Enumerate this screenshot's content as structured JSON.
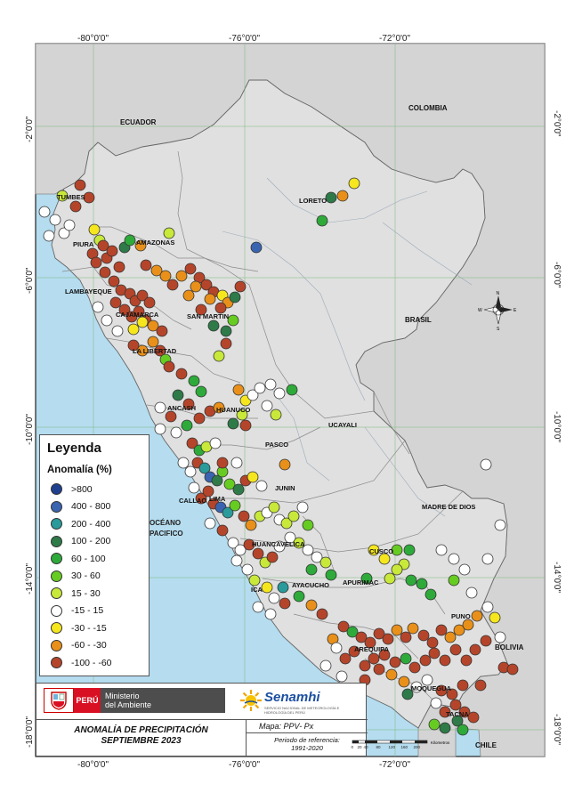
{
  "map": {
    "coords_top": [
      "-80°0'0\"",
      "-76°0'0\"",
      "-72°0'0\""
    ],
    "coords_bottom": [
      "-80°0'0\"",
      "-76°0'0\"",
      "-72°0'0\""
    ],
    "coords_left": [
      "-2°0'0\"",
      "-6°0'0\"",
      "-10°0'0\"",
      "-14°0'0\"",
      "-18°0'0\""
    ],
    "coords_right": [
      "-2°0'0\"",
      "-6°0'0\"",
      "-10°0'0\"",
      "-14°0'0\"",
      "-18°0'0\""
    ],
    "countries": {
      "ecuador": "ECUADOR",
      "colombia": "COLOMBIA",
      "brasil": "BRASIL",
      "bolivia": "BOLIVIA",
      "chile": "CHILE"
    },
    "ocean": [
      "OCÉANO",
      "PACIFICO"
    ],
    "regions": {
      "tumbes": "TUMBES",
      "piura": "PIURA",
      "amazonas": "AMAZONAS",
      "loreto": "LORETO",
      "lambayeque": "LAMBAYEQUE",
      "cajamarca": "CAJAMARCA",
      "sanmartin": "SAN MARTIN",
      "lalibertad": "LA LIBERTAD",
      "ancash": "ANCASH",
      "huanuco": "HUANUCO",
      "ucayali": "UCAYALI",
      "pasco": "PASCO",
      "junin": "JUNIN",
      "callao": "CALLAO",
      "lima": "LIMA",
      "maddios": "MADRE DE DIOS",
      "huancavelica": "HUANCAVELICA",
      "cusco": "CUSCO",
      "ica": "ICA",
      "ayacucho": "AYACUCHO",
      "apurimac": "APURIMAC",
      "puno": "PUNO",
      "arequipa": "AREQUIPA",
      "moquegua": "MOQUEGUA",
      "tacna": "TACNA"
    },
    "compass": {
      "n": "N",
      "s": "S",
      "e": "E",
      "w": "W"
    }
  },
  "legend": {
    "title": "Leyenda",
    "subtitle": "Anomalía (%)",
    "classes": [
      {
        "label": ">800",
        "color": "#1f3f8f"
      },
      {
        "label": "400 - 800",
        "color": "#3a64b0"
      },
      {
        "label": "200 - 400",
        "color": "#2a9a9a"
      },
      {
        "label": "100 - 200",
        "color": "#2e7a48"
      },
      {
        "label": "60 - 100",
        "color": "#2eaa3a"
      },
      {
        "label": "30 - 60",
        "color": "#66cc22"
      },
      {
        "label": "15 - 30",
        "color": "#c8e83a"
      },
      {
        "label": "-15 - 15",
        "color": "#ffffff"
      },
      {
        "label": "-30 - -15",
        "color": "#f5e61e"
      },
      {
        "label": "-60 - -30",
        "color": "#e8901a"
      },
      {
        "label": "-100 - -60",
        "color": "#b5452a"
      }
    ]
  },
  "footer": {
    "peru": "PERÚ",
    "minam_line1": "Ministerio",
    "minam_line2": "del Ambiente",
    "senamhi": "Senamhi",
    "senamhi_tag": "SERVICIO NACIONAL DE METEOROLOGÍA E HIDROLOGÍA DEL PERÚ",
    "title_line1": "ANOMALÍA  DE PRECIPITACIÓN",
    "title_line2": "SEPTIEMBRE 2023",
    "map_type": "Mapa: PPV- Px",
    "period_line1": "Periodo de referencia:",
    "period_line2": "1991-2020"
  },
  "scalebar": {
    "ticks": [
      "0",
      "20",
      "40",
      "80",
      "120",
      "160",
      "200"
    ],
    "unit": "Kilometros"
  }
}
